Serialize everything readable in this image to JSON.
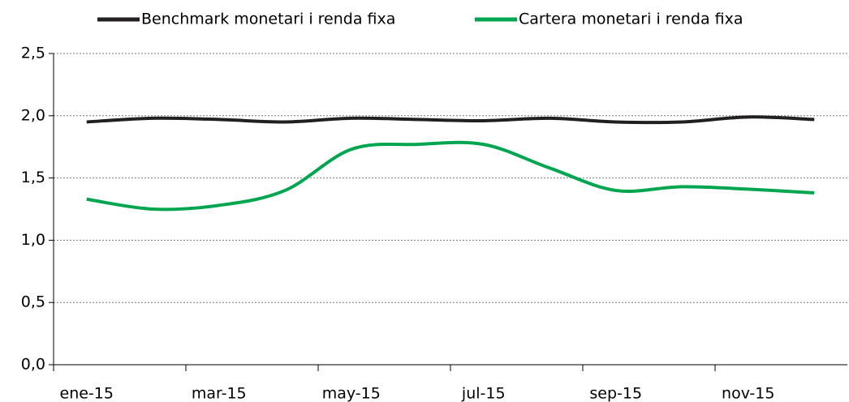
{
  "chart_data": {
    "type": "line",
    "categories": [
      "ene-15",
      null,
      "mar-15",
      null,
      "may-15",
      null,
      "jul-15",
      null,
      "sep-15",
      null,
      "nov-15",
      null
    ],
    "series": [
      {
        "name": "Benchmark monetari i renda fixa",
        "color": "#231f20",
        "values": [
          1.95,
          1.98,
          1.97,
          1.95,
          1.98,
          1.97,
          1.96,
          1.98,
          1.95,
          1.95,
          1.99,
          1.97
        ]
      },
      {
        "name": "Cartera monetari i renda fixa",
        "color": "#00a550",
        "values": [
          1.33,
          1.25,
          1.28,
          1.4,
          1.73,
          1.77,
          1.77,
          1.58,
          1.4,
          1.43,
          1.41,
          1.38
        ]
      }
    ],
    "ylim": [
      0,
      2.5
    ],
    "yticks": [
      {
        "value": 0,
        "label": "0,0"
      },
      {
        "value": 0.5,
        "label": "0,5"
      },
      {
        "value": 1,
        "label": "1,0"
      },
      {
        "value": 1.5,
        "label": "1,5"
      },
      {
        "value": 2,
        "label": "2,0"
      },
      {
        "value": 2.5,
        "label": "2,5"
      }
    ],
    "grid": true,
    "legend": "top"
  }
}
